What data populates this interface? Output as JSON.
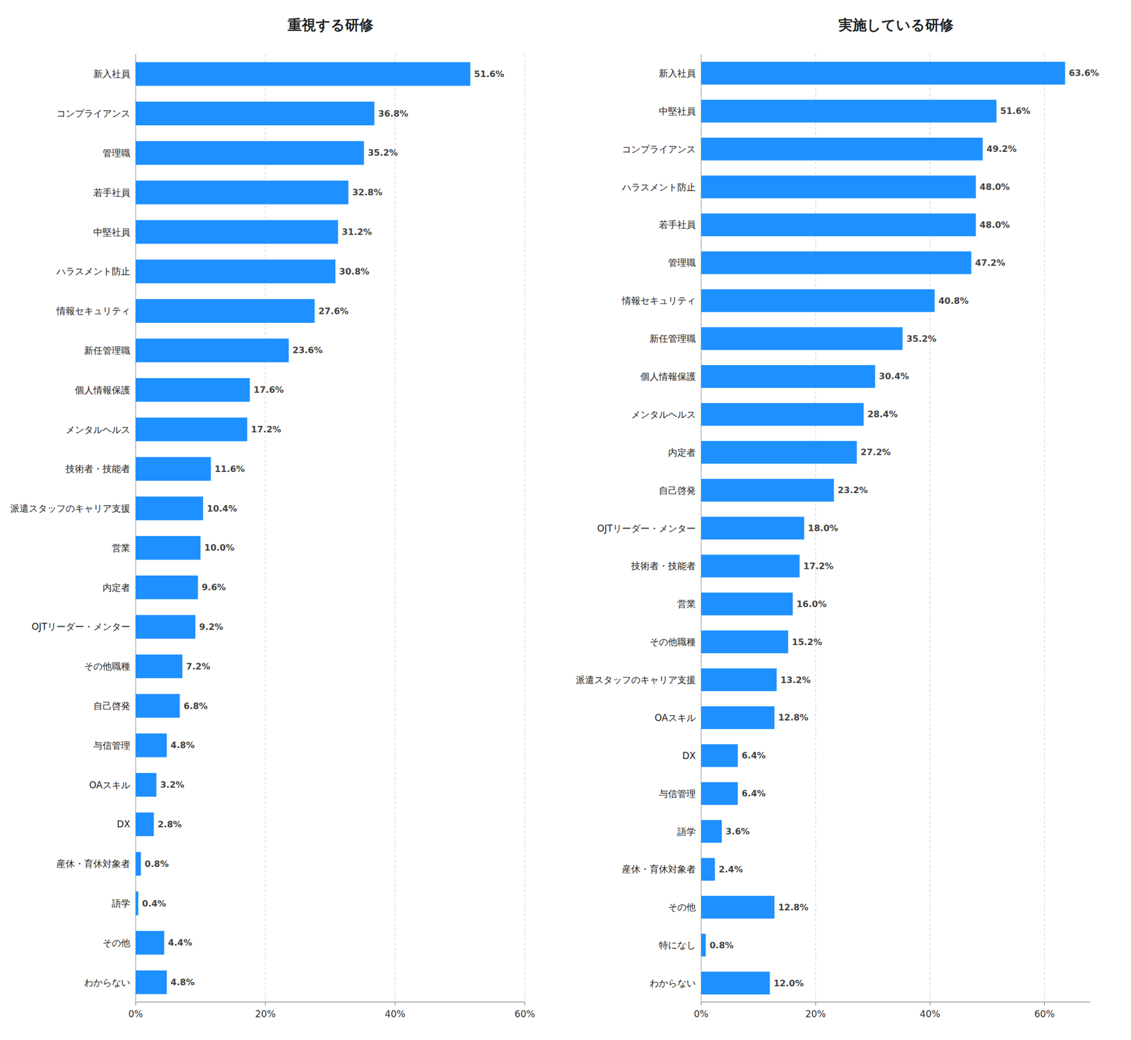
{
  "chart_data": [
    {
      "type": "bar",
      "orientation": "horizontal",
      "title": "重視する研修",
      "categories": [
        "新入社員",
        "コンプライアンス",
        "管理職",
        "若手社員",
        "中堅社員",
        "ハラスメント防止",
        "情報セキュリティ",
        "新任管理職",
        "個人情報保護",
        "メンタルヘルス",
        "技術者・技能者",
        "派遣スタッフのキャリア支援",
        "営業",
        "内定者",
        "OJTリーダー・メンター",
        "その他職種",
        "自己啓発",
        "与信管理",
        "OAスキル",
        "DX",
        "産休・育休対象者",
        "語学",
        "その他",
        "わからない"
      ],
      "values": [
        51.6,
        36.8,
        35.2,
        32.8,
        31.2,
        30.8,
        27.6,
        23.6,
        17.6,
        17.2,
        11.6,
        10.4,
        10.0,
        9.6,
        9.2,
        7.2,
        6.8,
        4.8,
        3.2,
        2.8,
        0.8,
        0.4,
        4.4,
        4.8
      ],
      "value_labels": [
        "51.6%",
        "36.8%",
        "35.2%",
        "32.8%",
        "31.2%",
        "30.8%",
        "27.6%",
        "23.6%",
        "17.6%",
        "17.2%",
        "11.6%",
        "10.4%",
        "10.0%",
        "9.6%",
        "9.2%",
        "7.2%",
        "6.8%",
        "4.8%",
        "3.2%",
        "2.8%",
        "0.8%",
        "0.4%",
        "4.4%",
        "4.8%"
      ],
      "color": "#1E90FF",
      "xlim": [
        0,
        60
      ],
      "xticks": [
        {
          "value": 0,
          "label": "0%"
        },
        {
          "value": 20,
          "label": "20%"
        },
        {
          "value": 40,
          "label": "40%"
        },
        {
          "value": 60,
          "label": "60%"
        }
      ],
      "grid": true,
      "data_labels": true
    },
    {
      "type": "bar",
      "orientation": "horizontal",
      "title": "実施している研修",
      "categories": [
        "新入社員",
        "中堅社員",
        "コンプライアンス",
        "ハラスメント防止",
        "若手社員",
        "管理職",
        "情報セキュリティ",
        "新任管理職",
        "個人情報保護",
        "メンタルヘルス",
        "内定者",
        "自己啓発",
        "OJTリーダー・メンター",
        "技術者・技能者",
        "営業",
        "その他職種",
        "派遣スタッフのキャリア支援",
        "OAスキル",
        "DX",
        "与信管理",
        "語学",
        "産休・育休対象者",
        "その他",
        "特になし",
        "わからない"
      ],
      "values": [
        63.6,
        51.6,
        49.2,
        48.0,
        48.0,
        47.2,
        40.8,
        35.2,
        30.4,
        28.4,
        27.2,
        23.2,
        18.0,
        17.2,
        16.0,
        15.2,
        13.2,
        12.8,
        6.4,
        6.4,
        3.6,
        2.4,
        12.8,
        0.8,
        12.0
      ],
      "value_labels": [
        "63.6%",
        "51.6%",
        "49.2%",
        "48.0%",
        "48.0%",
        "47.2%",
        "40.8%",
        "35.2%",
        "30.4%",
        "28.4%",
        "27.2%",
        "23.2%",
        "18.0%",
        "17.2%",
        "16.0%",
        "15.2%",
        "13.2%",
        "12.8%",
        "6.4%",
        "6.4%",
        "3.6%",
        "2.4%",
        "12.8%",
        "0.8%",
        "12.0%"
      ],
      "color": "#1E90FF",
      "xlim": [
        0,
        68
      ],
      "xticks": [
        {
          "value": 0,
          "label": "0%"
        },
        {
          "value": 20,
          "label": "20%"
        },
        {
          "value": 40,
          "label": "40%"
        },
        {
          "value": 60,
          "label": "60%"
        }
      ],
      "grid": true,
      "data_labels": true
    }
  ]
}
